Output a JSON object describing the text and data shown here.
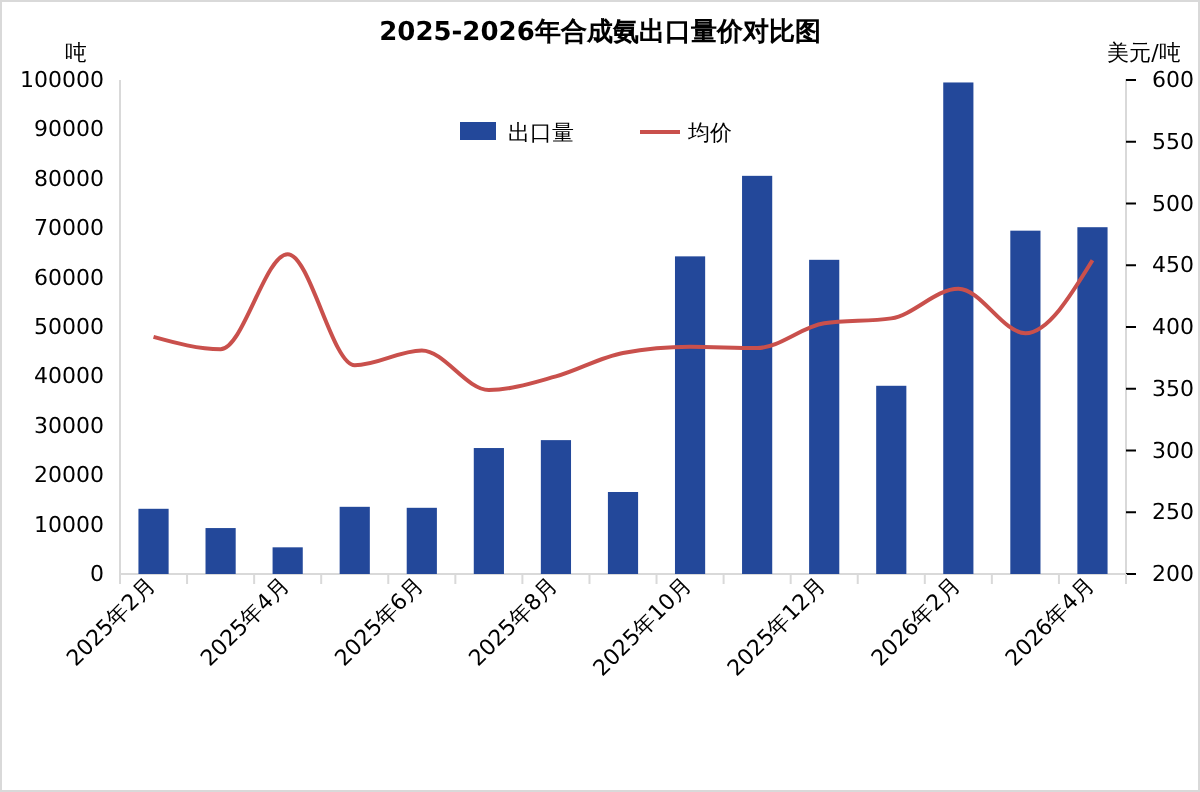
{
  "chart_data": {
    "type": "bar",
    "title": "2025-2026年合成氨出口量价对比图",
    "ylabel": "吨",
    "y2label": "美元/吨",
    "categories": [
      "2025年2月",
      null,
      "2025年4月",
      null,
      "2025年6月",
      null,
      "2025年8月",
      null,
      "2025年10月",
      null,
      "2025年12月",
      null,
      "2026年2月",
      null,
      "2026年4月"
    ],
    "series": [
      {
        "name": "出口量",
        "type": "bar",
        "color": "#23489a",
        "values": [
          13200,
          9300,
          5400,
          13600,
          13400,
          25500,
          27100,
          16600,
          64300,
          80600,
          63600,
          38100,
          99500,
          69500,
          70200
        ]
      },
      {
        "name": "均价",
        "type": "line",
        "axis": "y2",
        "color": "#c9504c",
        "values": [
          392,
          382,
          459,
          369,
          381,
          349,
          360,
          379,
          384,
          383,
          403,
          407,
          431,
          395,
          454
        ]
      }
    ],
    "ylim": [
      0,
      100000
    ],
    "yticks": [
      0,
      10000,
      20000,
      30000,
      40000,
      50000,
      60000,
      70000,
      80000,
      90000,
      100000
    ],
    "y2lim": [
      200,
      600
    ],
    "y2ticks": [
      200,
      250,
      300,
      350,
      400,
      450,
      500,
      550,
      600
    ],
    "legend": "top",
    "grid": false,
    "marker": "none",
    "line_style": "solid"
  }
}
